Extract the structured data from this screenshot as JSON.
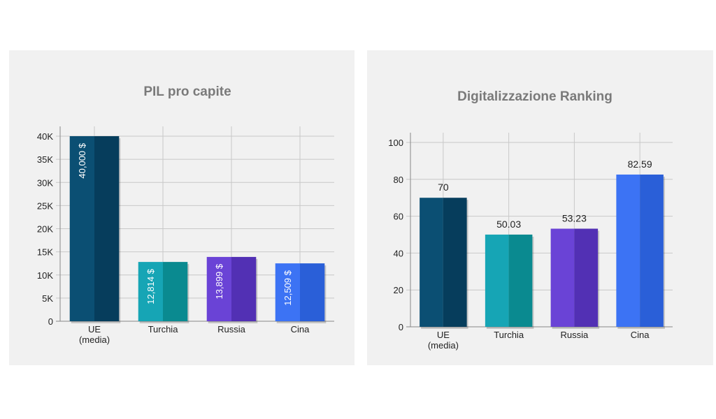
{
  "chart_data": [
    {
      "type": "bar",
      "title": "PIL pro capite",
      "categories": [
        [
          "UE",
          "(media)"
        ],
        [
          "Turchia"
        ],
        [
          "Russia"
        ],
        [
          "Cina"
        ]
      ],
      "values": [
        40000,
        12814,
        13899,
        12509
      ],
      "data_labels": [
        "40,000 $",
        "12,814 $",
        "13,899 $",
        "12,509 $"
      ],
      "yticks": [
        "0",
        "5K",
        "10K",
        "15K",
        "20K",
        "25K",
        "30K",
        "35K",
        "40K"
      ],
      "ylim": [
        0,
        40000
      ],
      "grid": true,
      "label_position": "inside-vertical"
    },
    {
      "type": "bar",
      "title": "Digitalizzazione Ranking",
      "categories": [
        [
          "UE",
          "(media)"
        ],
        [
          "Turchia"
        ],
        [
          "Russia"
        ],
        [
          "Cina"
        ]
      ],
      "values": [
        70,
        50.03,
        53.23,
        82.59
      ],
      "data_labels": [
        "70",
        "50.03",
        "53.23",
        "82.59"
      ],
      "yticks": [
        "0",
        "20",
        "40",
        "60",
        "80",
        "100"
      ],
      "ylim": [
        0,
        100
      ],
      "grid": true,
      "label_position": "above"
    }
  ],
  "colors": {
    "bars_light": [
      "#0b4f73",
      "#16a5b5",
      "#6a43d6",
      "#3c73f4"
    ],
    "bars_dark": [
      "#063d5c",
      "#0a8a90",
      "#5230b4",
      "#2a5fd8"
    ],
    "grid": "#c8c8c8",
    "axis": "#888888"
  }
}
